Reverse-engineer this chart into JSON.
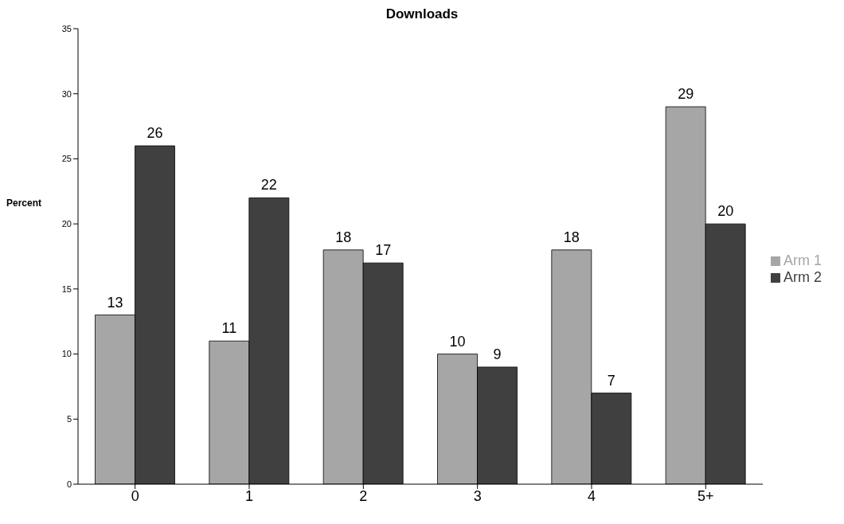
{
  "chart_data": {
    "type": "bar",
    "title": "Downloads",
    "ylabel": "Percent",
    "categories": [
      "0",
      "1",
      "2",
      "3",
      "4",
      "5+"
    ],
    "series": [
      {
        "name": "Arm 1",
        "color": "#a6a6a6",
        "values": [
          13,
          11,
          18,
          10,
          18,
          29
        ]
      },
      {
        "name": "Arm 2",
        "color": "#404040",
        "values": [
          26,
          22,
          17,
          9,
          7,
          20
        ]
      }
    ],
    "ylim": [
      0,
      35
    ],
    "yticks": [
      0,
      5,
      10,
      15,
      20,
      25,
      30,
      35
    ],
    "grid": false,
    "legend": "right",
    "data_labels": true
  }
}
